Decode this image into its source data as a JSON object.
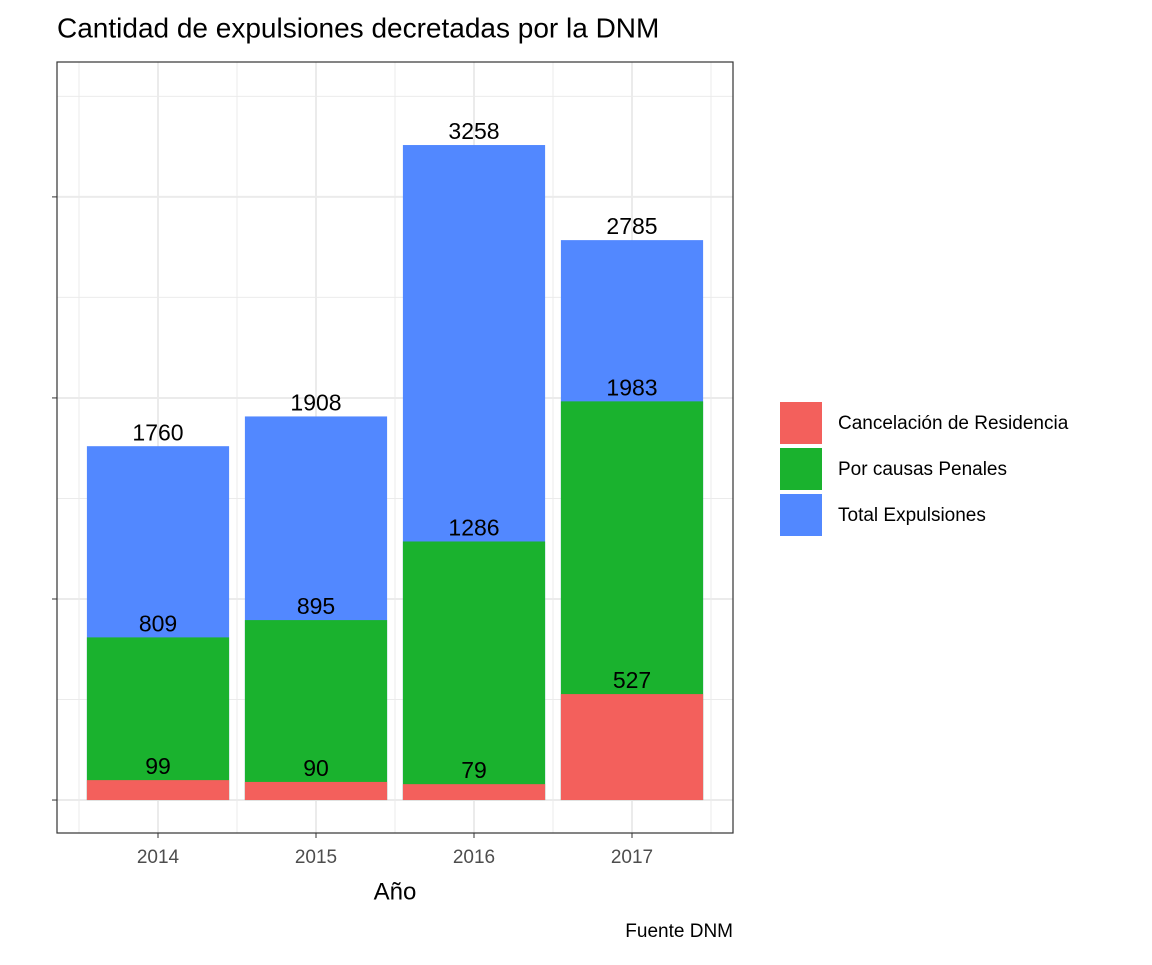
{
  "chart_data": {
    "type": "bar",
    "title": "Cantidad de expulsiones decretadas por la DNM",
    "x_label": "Año",
    "caption": "Fuente DNM",
    "categories": [
      "2014",
      "2015",
      "2016",
      "2017"
    ],
    "series": [
      {
        "name": "Total Expulsiones",
        "color": "#5288FF",
        "values": [
          1760,
          1908,
          3258,
          2785
        ]
      },
      {
        "name": "Por causas Penales",
        "color": "#1AB22E",
        "values": [
          809,
          895,
          1286,
          1983
        ]
      },
      {
        "name": "Cancelación de Residencia",
        "color": "#F3605C",
        "values": [
          99,
          90,
          79,
          527
        ]
      }
    ],
    "legend_order": [
      2,
      1,
      0
    ],
    "ylim": [
      -164,
      3671
    ],
    "yticks": [
      0,
      1000,
      2000,
      3000
    ],
    "yminorticks": [
      500,
      1500,
      2500,
      3500
    ],
    "grid": true,
    "legend": "right"
  }
}
